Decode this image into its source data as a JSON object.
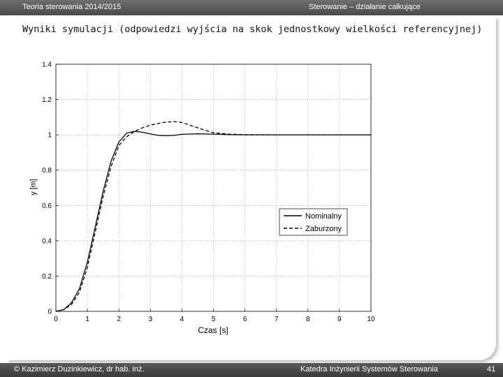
{
  "header": {
    "left": "Teoria sterowania 2014/2015",
    "right": "Sterowanie – działanie całkujące"
  },
  "slide": {
    "title": "Wyniki symulacji (odpowiedzi wyjścia na skok jednostkowy wielkości referencyjnej)"
  },
  "footer": {
    "author": "© Kazimierz Duzinkiewicz, dr hab. inż.",
    "department": "Katedra Inżynierii Systemów Sterowania",
    "page": "41"
  },
  "chart_data": {
    "type": "line",
    "xlabel": "Czas [s]",
    "ylabel": "y [m]",
    "xlim": [
      0,
      10
    ],
    "ylim": [
      0,
      1.4
    ],
    "xticks": [
      0,
      1,
      2,
      3,
      4,
      5,
      6,
      7,
      8,
      9,
      10
    ],
    "yticks": [
      0,
      0.2,
      0.4,
      0.6,
      0.8,
      1,
      1.2,
      1.4
    ],
    "grid": true,
    "legend_position": "center-right",
    "series": [
      {
        "name": "Nominalny",
        "style": "solid",
        "x": [
          0,
          0.25,
          0.5,
          0.75,
          1.0,
          1.25,
          1.5,
          1.75,
          2.0,
          2.25,
          2.5,
          2.75,
          3.0,
          3.25,
          3.5,
          3.75,
          4.0,
          4.5,
          5.0,
          5.5,
          6.0,
          7.0,
          8.0,
          9.0,
          10.0
        ],
        "y": [
          0,
          0.01,
          0.05,
          0.13,
          0.28,
          0.48,
          0.68,
          0.85,
          0.96,
          1.01,
          1.02,
          1.015,
          1.005,
          0.997,
          0.995,
          0.997,
          1.003,
          1.006,
          1.004,
          1.001,
          1.0,
          1.0,
          1.0,
          1.0,
          1.0
        ]
      },
      {
        "name": "Zaburzony",
        "style": "dashed",
        "x": [
          0,
          0.25,
          0.5,
          0.75,
          1.0,
          1.25,
          1.5,
          1.75,
          2.0,
          2.25,
          2.5,
          2.75,
          3.0,
          3.25,
          3.5,
          3.75,
          4.0,
          4.25,
          4.5,
          4.75,
          5.0,
          5.5,
          6.0,
          7.0,
          8.0,
          9.0,
          10.0
        ],
        "y": [
          0,
          0.01,
          0.04,
          0.11,
          0.25,
          0.45,
          0.65,
          0.82,
          0.94,
          0.99,
          1.02,
          1.04,
          1.055,
          1.065,
          1.072,
          1.075,
          1.07,
          1.055,
          1.04,
          1.025,
          1.012,
          1.004,
          1.001,
          1.0,
          1.0,
          1.0,
          1.0
        ]
      }
    ]
  }
}
